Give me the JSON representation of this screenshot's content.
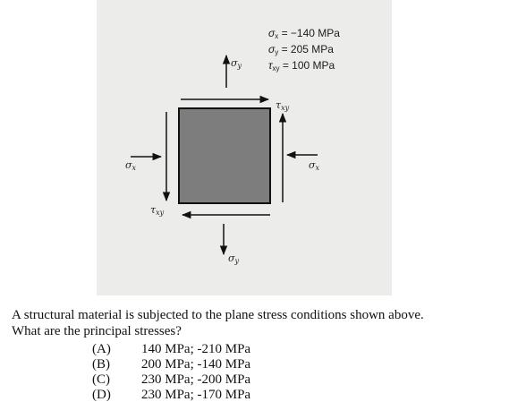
{
  "figure": {
    "given": {
      "sx": {
        "sym": "σ",
        "sub": "x",
        "rest": " = −140 MPa"
      },
      "sy": {
        "sym": "σ",
        "sub": "y",
        "rest": " = 205 MPa"
      },
      "txy": {
        "sym": "τ",
        "sub": "xy",
        "rest": " = 100 MPa"
      }
    },
    "labels": {
      "sigma": "σ",
      "tau": "τ",
      "x": "x",
      "y": "y",
      "xy": "xy"
    },
    "colors": {
      "element_fill": "#7d7d7d",
      "background": "#ececea"
    }
  },
  "question": {
    "line1": "A structural material is subjected to the plane stress conditions shown above.",
    "line2": "What are the principal stresses?"
  },
  "options": [
    {
      "letter": "(A)",
      "text": "140 MPa; -210 MPa"
    },
    {
      "letter": "(B)",
      "text": "200 MPa; -140 MPa"
    },
    {
      "letter": "(C)",
      "text": "230 MPa; -200 MPa"
    },
    {
      "letter": "(D)",
      "text": "230 MPa; -170 MPa"
    }
  ]
}
